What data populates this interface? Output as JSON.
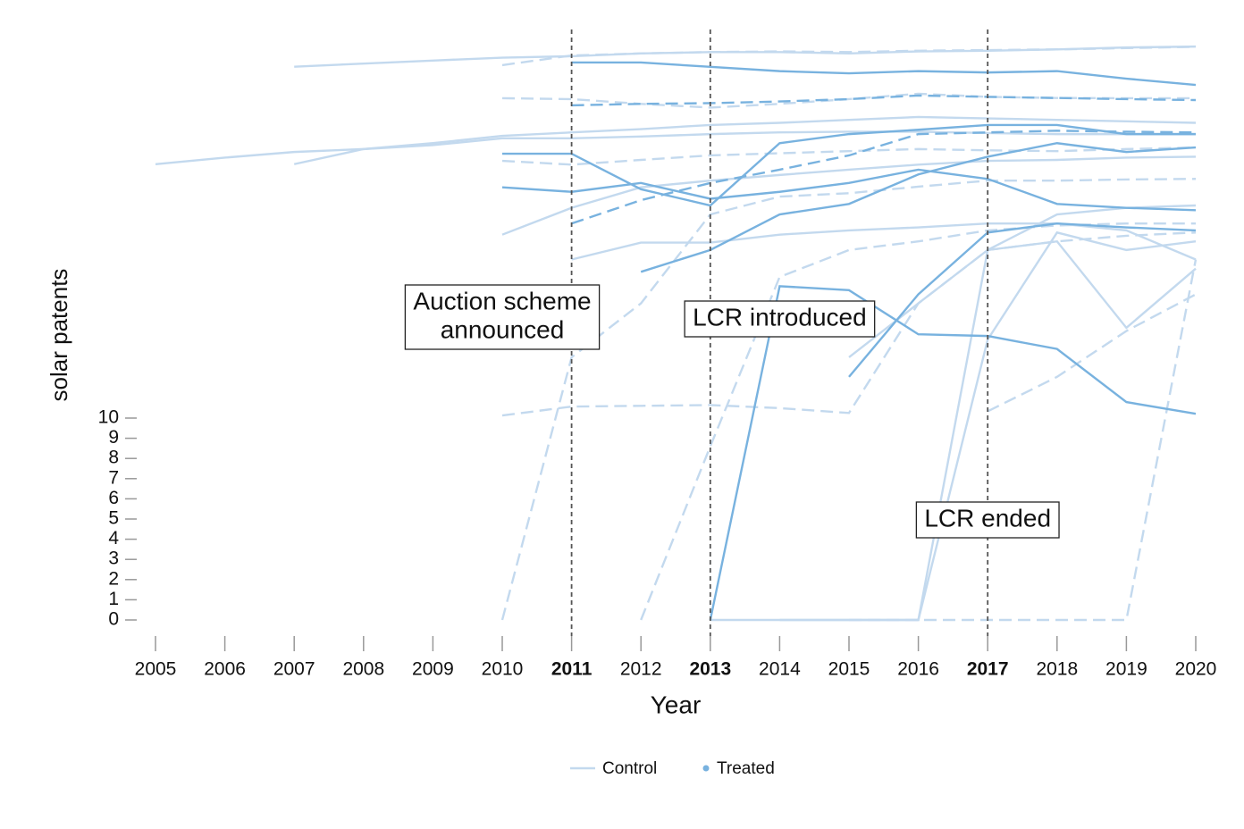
{
  "chart_data": {
    "type": "line",
    "x_label": "Year",
    "y_label": "solar patents",
    "x": [
      2005,
      2006,
      2007,
      2008,
      2009,
      2010,
      2011,
      2012,
      2013,
      2014,
      2015,
      2016,
      2017,
      2018,
      2019,
      2020
    ],
    "xticks": [
      2005,
      2006,
      2007,
      2008,
      2009,
      2010,
      2011,
      2012,
      2013,
      2014,
      2015,
      2016,
      2017,
      2018,
      2019,
      2020
    ],
    "xlim": [
      2004.6,
      2020
    ],
    "yticks": [
      0,
      1,
      2,
      3,
      4,
      5,
      6,
      7,
      8,
      9,
      10
    ],
    "ylim": [
      -0.8,
      780
    ],
    "yscale": "linear-log",
    "linear_until": 10,
    "vlines": [
      2011,
      2013,
      2017
    ],
    "annotations": [
      {
        "lines": [
          "Auction scheme",
          "announced"
        ],
        "x": 2010
      },
      {
        "lines": [
          "LCR introduced"
        ],
        "x": 2014
      },
      {
        "lines": [
          "LCR ended"
        ],
        "x": 2017
      }
    ],
    "legend_symbols": [
      "line",
      "dot"
    ],
    "series": [
      {
        "name": "Control",
        "color": "#c3d9ee",
        "dashed": false,
        "values": [
          null,
          null,
          550,
          570,
          590,
          610,
          620,
          640,
          650,
          650,
          640,
          655,
          660,
          670,
          685,
          692
        ]
      },
      {
        "name": "Control",
        "color": "#c3d9ee",
        "dashed": false,
        "values": [
          181,
          195,
          208,
          215,
          225,
          243,
          243,
          248,
          255,
          260,
          262,
          262,
          258,
          255,
          255,
          255
        ]
      },
      {
        "name": "Control",
        "color": "#c3d9ee",
        "dashed": false,
        "values": [
          null,
          null,
          181,
          215,
          230,
          250,
          260,
          270,
          283,
          290,
          300,
          310,
          305,
          300,
          295,
          290
        ]
      },
      {
        "name": "Control",
        "color": "#c3d9ee",
        "dashed": false,
        "values": [
          null,
          null,
          null,
          null,
          null,
          81,
          110,
          139,
          150,
          160,
          170,
          180,
          188,
          190,
          195,
          197
        ]
      },
      {
        "name": "Control",
        "color": "#c3d9ee",
        "dashed": false,
        "values": [
          null,
          null,
          null,
          null,
          null,
          null,
          61,
          74,
          74,
          81,
          85,
          88,
          92,
          92,
          85,
          61
        ]
      },
      {
        "name": "Control",
        "color": "#c3d9ee",
        "dashed": false,
        "values": [
          null,
          null,
          null,
          null,
          null,
          null,
          null,
          null,
          null,
          0,
          0,
          0,
          68,
          102,
          110,
          113
        ]
      },
      {
        "name": "Control",
        "color": "#c3d9ee",
        "dashed": false,
        "values": [
          null,
          null,
          null,
          null,
          null,
          null,
          null,
          null,
          null,
          null,
          20,
          37,
          68,
          75,
          28,
          55
        ]
      },
      {
        "name": "Control",
        "color": "#c3d9ee",
        "dashed": false,
        "values": [
          null,
          null,
          null,
          null,
          null,
          null,
          null,
          null,
          0,
          0,
          0,
          0,
          24.5,
          83,
          68,
          75
        ]
      },
      {
        "name": "Control",
        "color": "#c3d9ee",
        "dashed": true,
        "values": [
          null,
          null,
          null,
          null,
          null,
          560,
          625,
          640,
          650,
          655,
          650,
          660,
          665,
          670,
          680,
          690
        ]
      },
      {
        "name": "Control",
        "color": "#c3d9ee",
        "dashed": true,
        "values": [
          null,
          null,
          null,
          null,
          null,
          10.3,
          11.4,
          11.5,
          11.6,
          11.2,
          10.6,
          37,
          68,
          75,
          80,
          83
        ]
      },
      {
        "name": "Control",
        "color": "#c3d9ee",
        "dashed": true,
        "values": [
          null,
          null,
          null,
          null,
          null,
          0,
          20,
          37,
          102,
          125,
          130,
          140,
          150,
          150,
          152,
          153
        ]
      },
      {
        "name": "Control",
        "color": "#c3d9ee",
        "dashed": true,
        "values": [
          null,
          null,
          null,
          null,
          null,
          null,
          null,
          0,
          8.6,
          50,
          68,
          75,
          85,
          90,
          92,
          92
        ]
      },
      {
        "name": "Control",
        "color": "#c3d9ee",
        "dashed": true,
        "values": [
          null,
          null,
          null,
          null,
          null,
          null,
          null,
          null,
          null,
          null,
          0,
          0,
          0,
          0,
          0,
          61
        ]
      },
      {
        "name": "Control",
        "color": "#c3d9ee",
        "dashed": true,
        "values": [
          null,
          null,
          null,
          null,
          null,
          null,
          null,
          null,
          null,
          null,
          null,
          null,
          10.8,
          16,
          27,
          41
        ]
      },
      {
        "name": "Control",
        "color": "#c3d9ee",
        "dashed": true,
        "values": [
          null,
          null,
          null,
          null,
          null,
          384,
          380,
          360,
          345,
          360,
          380,
          404,
          390,
          385,
          384,
          384
        ]
      },
      {
        "name": "Control",
        "color": "#c3d9ee",
        "dashed": true,
        "values": [
          null,
          null,
          null,
          null,
          null,
          188,
          180,
          190,
          200,
          205,
          210,
          215,
          212,
          210,
          215,
          219
        ]
      },
      {
        "name": "Treated",
        "color": "#78b2df",
        "dashed": false,
        "values": [
          null,
          null,
          null,
          null,
          null,
          null,
          577,
          577,
          549,
          523,
          510,
          523,
          515,
          523,
          480,
          447
        ]
      },
      {
        "name": "Treated",
        "color": "#78b2df",
        "dashed": false,
        "values": [
          null,
          null,
          null,
          null,
          null,
          null,
          null,
          null,
          0,
          45,
          43,
          26,
          25.5,
          22,
          12,
          10.5
        ]
      },
      {
        "name": "Treated",
        "color": "#78b2df",
        "dashed": false,
        "values": [
          null,
          null,
          null,
          null,
          null,
          204,
          204,
          136,
          113,
          230,
          255,
          268,
          283,
          283,
          255,
          255
        ]
      },
      {
        "name": "Treated",
        "color": "#78b2df",
        "dashed": false,
        "values": [
          null,
          null,
          null,
          null,
          null,
          null,
          null,
          53,
          68,
          102,
          115,
          161,
          197,
          230,
          208,
          219
        ]
      },
      {
        "name": "Treated",
        "color": "#78b2df",
        "dashed": false,
        "values": [
          null,
          null,
          null,
          null,
          null,
          null,
          null,
          null,
          null,
          null,
          16,
          41,
          83,
          92,
          88,
          85
        ]
      },
      {
        "name": "Treated",
        "color": "#78b2df",
        "dashed": true,
        "values": [
          null,
          null,
          null,
          null,
          null,
          null,
          354,
          360,
          363,
          370,
          380,
          396,
          390,
          385,
          380,
          376
        ]
      },
      {
        "name": "Treated",
        "color": "#78b2df",
        "dashed": true,
        "values": [
          null,
          null,
          null,
          null,
          null,
          null,
          92,
          120,
          146,
          170,
          200,
          255,
          260,
          265,
          262,
          260
        ]
      },
      {
        "name": "Treated",
        "color": "#78b2df",
        "dashed": false,
        "values": [
          null,
          null,
          null,
          null,
          null,
          139,
          132,
          146,
          122,
          132,
          146,
          170,
          153,
          115,
          110,
          107
        ]
      }
    ]
  }
}
